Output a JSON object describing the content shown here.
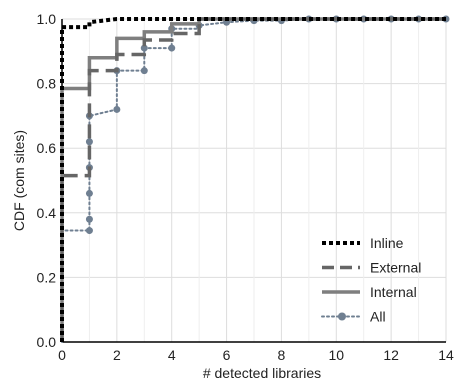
{
  "chart_data": {
    "type": "line",
    "xlabel": "# detected libraries",
    "ylabel": "CDF (com sites)",
    "xlim": [
      0,
      14
    ],
    "ylim": [
      0,
      1.0
    ],
    "xticks": [
      0,
      2,
      4,
      6,
      8,
      10,
      12,
      14
    ],
    "yticks": [
      0.0,
      0.2,
      0.4,
      0.6,
      0.8,
      1.0
    ],
    "grid": true,
    "legend_position": "bottom-right",
    "series": [
      {
        "name": "Inline",
        "style": "dotted-square",
        "color": "#000000",
        "x": [
          0,
          0.0,
          1,
          1,
          2,
          14
        ],
        "y": [
          0,
          0.975,
          0.975,
          0.99,
          1.0,
          1.0
        ]
      },
      {
        "name": "External",
        "style": "dashed",
        "color": "#666666",
        "x": [
          0,
          0.0,
          1,
          1,
          2,
          2,
          3,
          3,
          4,
          4,
          5,
          5,
          14
        ],
        "y": [
          0,
          0.515,
          0.515,
          0.84,
          0.84,
          0.89,
          0.89,
          0.935,
          0.935,
          0.955,
          0.955,
          1.0,
          1.0
        ]
      },
      {
        "name": "Internal",
        "style": "solid",
        "color": "#7f7f7f",
        "x": [
          0,
          0.0,
          1,
          1,
          2,
          2,
          3,
          3,
          4,
          4,
          5,
          5,
          14
        ],
        "y": [
          0,
          0.785,
          0.785,
          0.88,
          0.88,
          0.94,
          0.94,
          0.96,
          0.96,
          0.985,
          0.985,
          1.0,
          1.0
        ]
      },
      {
        "name": "All",
        "style": "dotted-marker",
        "color": "#6f7f91",
        "x": [
          0,
          0.0,
          1,
          1,
          1,
          1,
          1,
          1,
          2,
          2,
          3,
          3,
          4,
          4,
          5,
          5,
          6,
          7,
          8,
          9,
          10,
          11,
          12,
          13,
          14
        ],
        "y": [
          0,
          0.345,
          0.345,
          0.38,
          0.46,
          0.54,
          0.62,
          0.7,
          0.72,
          0.84,
          0.84,
          0.91,
          0.91,
          0.97,
          0.97,
          0.98,
          0.99,
          0.995,
          0.995,
          1.0,
          1.0,
          1.0,
          1.0,
          1.0,
          1.0
        ],
        "markers": [
          [
            1,
            0.345
          ],
          [
            1,
            0.38
          ],
          [
            1,
            0.46
          ],
          [
            1,
            0.54
          ],
          [
            1,
            0.62
          ],
          [
            1,
            0.7
          ],
          [
            2,
            0.72
          ],
          [
            2,
            0.84
          ],
          [
            3,
            0.84
          ],
          [
            3,
            0.91
          ],
          [
            4,
            0.91
          ],
          [
            4,
            0.97
          ],
          [
            5,
            0.98
          ],
          [
            6,
            0.99
          ],
          [
            7,
            0.995
          ],
          [
            8,
            0.995
          ],
          [
            9,
            1.0
          ],
          [
            10,
            1.0
          ],
          [
            11,
            1.0
          ],
          [
            12,
            1.0
          ],
          [
            13,
            1.0
          ],
          [
            14,
            1.0
          ]
        ]
      }
    ]
  }
}
